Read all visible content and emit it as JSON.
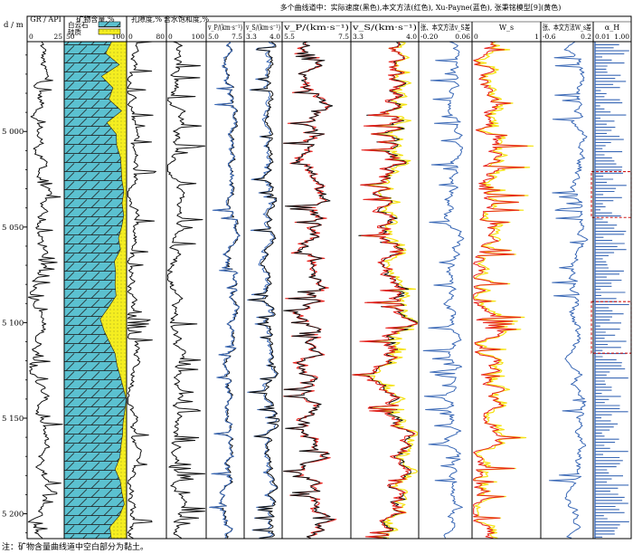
{
  "chart_data": {
    "type": "line",
    "title": "多个曲线道中：实际速度(黑色),本文方法(红色), Xu-Payne(蓝色), 张秉铭模型[9](黄色)",
    "depth_axis": {
      "label": "d / m",
      "range": [
        4953,
        5213
      ],
      "ticks": [
        5000,
        5050,
        5100,
        5150,
        5200
      ],
      "tick_labels": [
        "5 000",
        "5 050",
        "5 100",
        "5 150",
        "5 200"
      ]
    },
    "legend_colors": {
      "actual": "#111111",
      "this_method": "#e8221d",
      "xu_payne": "#3b69b6",
      "zhang": "#f5e315"
    },
    "tracks": [
      {
        "key": "gr",
        "label": "GR / API",
        "range": [
          0,
          25
        ],
        "range_labels": [
          "0",
          "25"
        ],
        "series": [
          {
            "name": "GR",
            "color": "#111111"
          }
        ]
      },
      {
        "key": "mineral",
        "label": "矿物含量,%",
        "range": [
          50,
          100
        ],
        "range_labels": [
          "50",
          "100"
        ],
        "legend": [
          {
            "name": "白云石",
            "color": "#5bc1d0"
          },
          {
            "name": "硅质",
            "color": "#f5ee20"
          }
        ],
        "dolomite_fraction": [
          0.76,
          0.69,
          0.88,
          0.62,
          0.81,
          0.74,
          0.92,
          0.7,
          0.82,
          0.87,
          0.93,
          0.94,
          0.95,
          0.95,
          0.93,
          0.94,
          0.9,
          0.87,
          0.89,
          0.82,
          0.85,
          0.8,
          0.85,
          0.72,
          0.6,
          0.62,
          0.7,
          0.83,
          0.87,
          0.93,
          0.96,
          0.97,
          0.97,
          0.96,
          0.94,
          0.9,
          0.87,
          0.82,
          0.87,
          0.93,
          0.96,
          0.9,
          0.75,
          0.76
        ]
      },
      {
        "key": "porosity",
        "label": "孔隙度,%",
        "range": [
          0,
          80
        ],
        "range_labels": [
          "0",
          "80"
        ],
        "series": [
          {
            "name": "孔隙度",
            "color": "#111111"
          }
        ]
      },
      {
        "key": "sw",
        "label": "含水饱和度,%",
        "range": [
          0,
          100
        ],
        "range_labels": [
          "0",
          "100"
        ],
        "series": [
          {
            "name": "含水饱和度",
            "color": "#111111"
          }
        ]
      },
      {
        "key": "vp1",
        "label": "v_P/(km·s⁻¹)",
        "range": [
          5.0,
          7.5
        ],
        "range_labels": [
          "5.0",
          "7.5"
        ],
        "series": [
          {
            "name": "实际",
            "color": "#111111"
          },
          {
            "name": "Xu-Payne",
            "color": "#3b69b6"
          }
        ]
      },
      {
        "key": "vs1",
        "label": "v_S/(km·s⁻¹)",
        "range": [
          3.3,
          4.0
        ],
        "range_labels": [
          "3.3",
          "4.0"
        ],
        "series": [
          {
            "name": "实际",
            "color": "#111111"
          },
          {
            "name": "Xu-Payne",
            "color": "#3b69b6"
          }
        ]
      },
      {
        "key": "vp2",
        "label": "v_P/(km·s⁻¹)",
        "range": [
          5.5,
          7.5
        ],
        "range_labels": [
          "5.5",
          "7.5"
        ],
        "series": [
          {
            "name": "实际",
            "color": "#111111"
          },
          {
            "name": "本文方法",
            "color": "#e8221d"
          }
        ]
      },
      {
        "key": "vs2",
        "label": "v_S/(km·s⁻¹)",
        "range": [
          3.3,
          4.0
        ],
        "range_labels": [
          "3.3",
          "4.0"
        ],
        "series": [
          {
            "name": "张秉铭模型",
            "color": "#f5e315"
          },
          {
            "name": "实际",
            "color": "#111111"
          },
          {
            "name": "本文方法",
            "color": "#e8221d"
          }
        ]
      },
      {
        "key": "dvs",
        "label": "张、本文方法v_S差",
        "range": [
          -0.2,
          0.06
        ],
        "range_labels": [
          "-0.20",
          "0.06"
        ],
        "series": [
          {
            "name": "差值",
            "color": "#3b69b6"
          }
        ]
      },
      {
        "key": "ws",
        "label": "W_s",
        "range": [
          0,
          1
        ],
        "range_labels": [
          "0",
          "1"
        ],
        "series": [
          {
            "name": "张秉铭模型",
            "color": "#f5e315"
          },
          {
            "name": "本文方法",
            "color": "#e8221d"
          }
        ]
      },
      {
        "key": "dws",
        "label": "张、本文方法W_s差",
        "range": [
          -0.6,
          0.2
        ],
        "range_labels": [
          "-0.6",
          "0.2"
        ],
        "series": [
          {
            "name": "差值",
            "color": "#3b69b6"
          }
        ]
      },
      {
        "key": "alpha",
        "label": "α_H",
        "range": [
          0.01,
          1.0
        ],
        "range_labels": [
          "0.01",
          "1.00"
        ],
        "series": [
          {
            "name": "α_H",
            "color": "#3b69b6"
          }
        ],
        "highlight_intervals": [
          [
            5021,
            5045
          ],
          [
            5089,
            5116
          ]
        ]
      }
    ]
  },
  "footnote": "注：矿物含量曲线道中空白部分为黏土。"
}
